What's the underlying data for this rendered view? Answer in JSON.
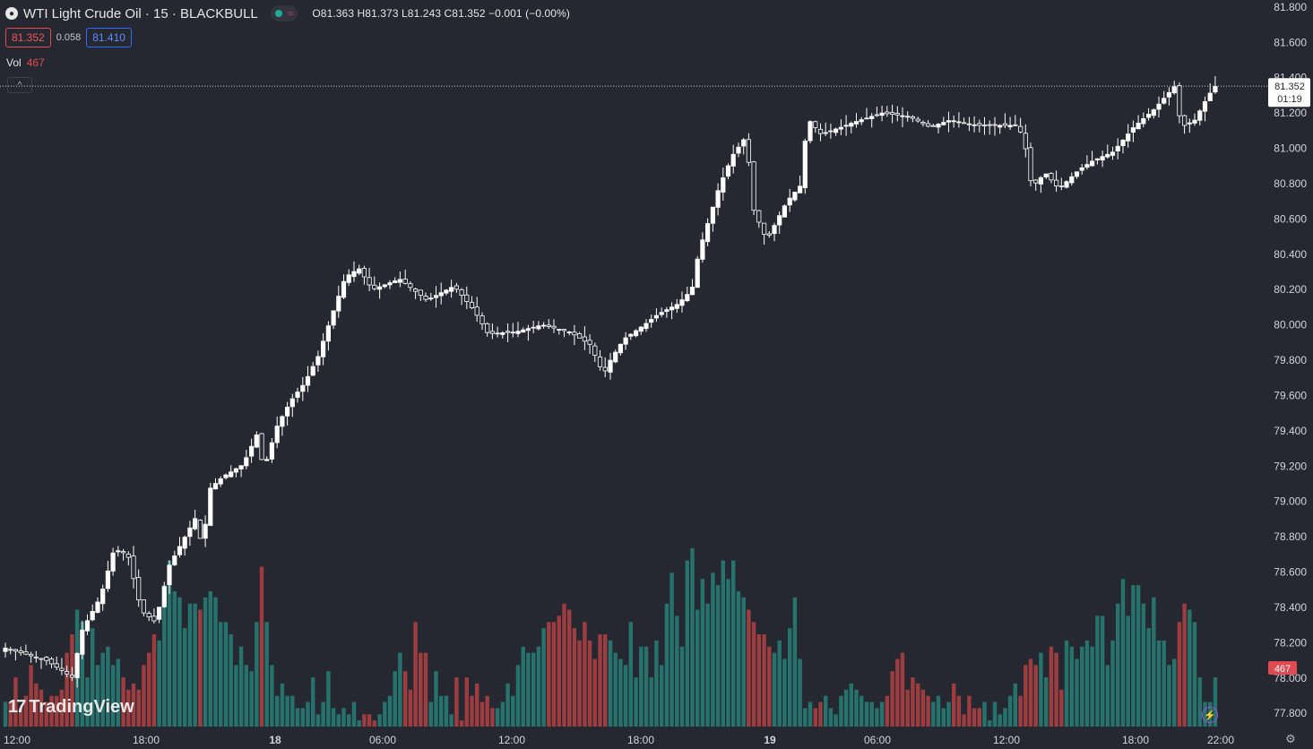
{
  "header": {
    "symbol_icon": "oil-drop-icon",
    "title": "WTI Light Crude Oil · 15 · BLACKBULL",
    "market_status": "market-open-dot",
    "realtime_icon": "waves-icon",
    "ohlc": "O81.363 H81.373 L81.243 C81.352 −0.001 (−0.00%)"
  },
  "quote": {
    "sell": "81.352",
    "spread": "0.058",
    "buy": "81.410"
  },
  "volume_legend": {
    "label": "Vol",
    "value": "467"
  },
  "branding": {
    "logo": "TradingView"
  },
  "colors": {
    "background": "#262831",
    "up_candle": "#ffffff",
    "vol_up": "#26736e",
    "vol_down": "#9e3d40",
    "current_volume_label": "#e04b52"
  },
  "chart_data": {
    "type": "candlestick",
    "interval": "15",
    "y_axis": {
      "ticks": [
        "81.800",
        "81.600",
        "81.400",
        "81.200",
        "81.000",
        "80.800",
        "80.600",
        "80.400",
        "80.200",
        "80.000",
        "79.800",
        "79.600",
        "79.400",
        "79.200",
        "79.000",
        "78.800",
        "78.600",
        "78.400",
        "78.200",
        "78.000",
        "77.800"
      ],
      "range": [
        77.72,
        81.84
      ]
    },
    "x_axis": {
      "ticks": [
        "12:00",
        "18:00",
        "18",
        "06:00",
        "12:00",
        "18:00",
        "19",
        "06:00",
        "12:00",
        "18:00",
        "22:00"
      ]
    },
    "current_price": {
      "value": "81.352",
      "countdown": "01:19"
    },
    "current_volume": "467",
    "price_path": [
      [
        0,
        78.17
      ],
      [
        6,
        78.1
      ],
      [
        10,
        78.0
      ],
      [
        11,
        78.25
      ],
      [
        14,
        78.46
      ],
      [
        16,
        78.73
      ],
      [
        18,
        78.7
      ],
      [
        20,
        78.38
      ],
      [
        22,
        78.32
      ],
      [
        23,
        78.45
      ],
      [
        24,
        78.63
      ],
      [
        28,
        78.91
      ],
      [
        29,
        78.73
      ],
      [
        30,
        79.07
      ],
      [
        32,
        79.14
      ],
      [
        35,
        79.21
      ],
      [
        37,
        79.38
      ],
      [
        38,
        79.18
      ],
      [
        40,
        79.43
      ],
      [
        42,
        79.57
      ],
      [
        44,
        79.67
      ],
      [
        46,
        79.82
      ],
      [
        48,
        80.05
      ],
      [
        50,
        80.27
      ],
      [
        52,
        80.32
      ],
      [
        54,
        80.2
      ],
      [
        58,
        80.26
      ],
      [
        62,
        80.14
      ],
      [
        66,
        80.22
      ],
      [
        69,
        80.08
      ],
      [
        71,
        79.95
      ],
      [
        75,
        79.96
      ],
      [
        79,
        80.0
      ],
      [
        83,
        79.96
      ],
      [
        86,
        79.89
      ],
      [
        88,
        79.72
      ],
      [
        89,
        79.8
      ],
      [
        90,
        79.86
      ],
      [
        91,
        79.92
      ],
      [
        94,
        80.0
      ],
      [
        96,
        80.06
      ],
      [
        99,
        80.12
      ],
      [
        101,
        80.2
      ],
      [
        102,
        80.41
      ],
      [
        105,
        80.78
      ],
      [
        107,
        80.96
      ],
      [
        109,
        81.07
      ],
      [
        110,
        80.66
      ],
      [
        112,
        80.48
      ],
      [
        115,
        80.7
      ],
      [
        117,
        80.79
      ],
      [
        118,
        81.17
      ],
      [
        120,
        81.08
      ],
      [
        123,
        81.12
      ],
      [
        125,
        81.15
      ],
      [
        129,
        81.2
      ],
      [
        133,
        81.18
      ],
      [
        136,
        81.12
      ],
      [
        139,
        81.16
      ],
      [
        143,
        81.13
      ],
      [
        149,
        81.13
      ],
      [
        150,
        81.02
      ],
      [
        151,
        80.78
      ],
      [
        153,
        80.86
      ],
      [
        155,
        80.77
      ],
      [
        158,
        80.88
      ],
      [
        160,
        80.93
      ],
      [
        163,
        80.98
      ],
      [
        166,
        81.12
      ],
      [
        169,
        81.22
      ],
      [
        172,
        81.35
      ],
      [
        173,
        81.12
      ],
      [
        175,
        81.16
      ],
      [
        177,
        81.3
      ],
      [
        178,
        81.35
      ]
    ],
    "volume_bars_per_15min": [
      4,
      4,
      8,
      3,
      5,
      10,
      7,
      6,
      4,
      5,
      5,
      6,
      12,
      15,
      19,
      17,
      8,
      16,
      10,
      12,
      13,
      10,
      11,
      8,
      6,
      7,
      6,
      10,
      12,
      15,
      14,
      23,
      27,
      22,
      21,
      16,
      20,
      20,
      19,
      21,
      22,
      21,
      17,
      17,
      15,
      10,
      13,
      10,
      9,
      17,
      26,
      17,
      10,
      5,
      7,
      5,
      5,
      3,
      3,
      4,
      8,
      2,
      4,
      9,
      3,
      2,
      3,
      2,
      4,
      1,
      2,
      2,
      1,
      2,
      4,
      5,
      9,
      12,
      9,
      6,
      17,
      12,
      12,
      4,
      9,
      5,
      5,
      2,
      8,
      1,
      8,
      5,
      7,
      4,
      5,
      3,
      3,
      4,
      7,
      5,
      10,
      13,
      12,
      12,
      13,
      16,
      17,
      17,
      18,
      20,
      19,
      16,
      14,
      17,
      14,
      11,
      15,
      15,
      14,
      12,
      11,
      10,
      17,
      8,
      13,
      13,
      8,
      14,
      10,
      20,
      25,
      18,
      13,
      27,
      29,
      19,
      24,
      20,
      25,
      23,
      27,
      24,
      27,
      22,
      21,
      19,
      17,
      15,
      15,
      13,
      12,
      14,
      11,
      16,
      21,
      11,
      3,
      4,
      3,
      4,
      5,
      3,
      2,
      5,
      6,
      7,
      6,
      5,
      4,
      4,
      3,
      4,
      5,
      9,
      11,
      12,
      6,
      8,
      7,
      6,
      5,
      4,
      5,
      3,
      4,
      7,
      5,
      2,
      5,
      3,
      3,
      4,
      1,
      4,
      2,
      3,
      5,
      7,
      5,
      10,
      11,
      10,
      12,
      8,
      13,
      12,
      6,
      14,
      13,
      11,
      13,
      14,
      13,
      18,
      18,
      10,
      14,
      20,
      24,
      18,
      23,
      23,
      20,
      16,
      21,
      14,
      14,
      10,
      11,
      17,
      20,
      19,
      17,
      8
    ]
  }
}
